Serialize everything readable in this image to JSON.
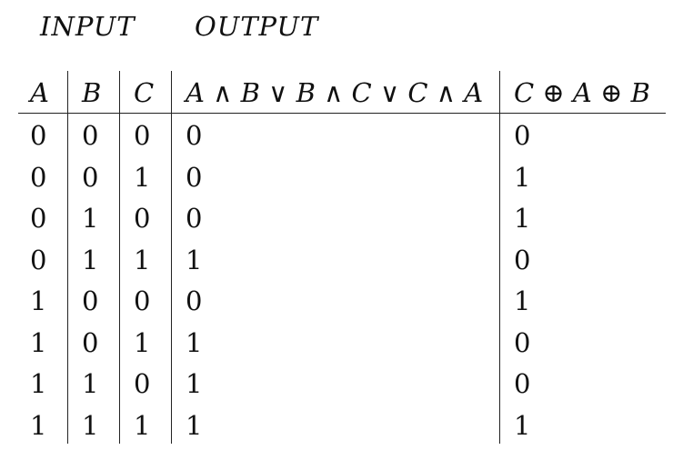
{
  "groups": {
    "input": "INPUT",
    "output": "OUTPUT"
  },
  "columns": {
    "a": "A",
    "b": "B",
    "c": "C",
    "d": "A ∧ B ∨ B ∧ C ∨ C ∧ A",
    "e": "C ⊕ A ⊕ B"
  },
  "rows": [
    [
      "0",
      "0",
      "0",
      "0",
      "0"
    ],
    [
      "0",
      "0",
      "1",
      "0",
      "1"
    ],
    [
      "0",
      "1",
      "0",
      "0",
      "1"
    ],
    [
      "0",
      "1",
      "1",
      "1",
      "0"
    ],
    [
      "1",
      "0",
      "0",
      "0",
      "1"
    ],
    [
      "1",
      "0",
      "1",
      "1",
      "0"
    ],
    [
      "1",
      "1",
      "0",
      "1",
      "0"
    ],
    [
      "1",
      "1",
      "1",
      "1",
      "1"
    ]
  ]
}
